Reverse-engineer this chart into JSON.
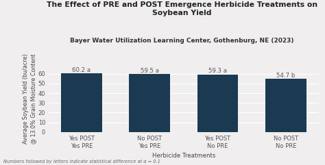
{
  "title_line1": "The Effect of PRE and POST Emergence Herbicide Treatments on",
  "title_line2": "Soybean Yield",
  "subtitle": "Bayer Water Utilization Learning Center, Gothenburg, NE (2023)",
  "categories": [
    "Yes POST\nYes PRE",
    "No POST\nYes PRE",
    "Yes POST\nNo PRE",
    "No POST\nNo PRE"
  ],
  "values": [
    60.2,
    59.5,
    59.3,
    54.7
  ],
  "labels": [
    "60.2 a",
    "59.5 a",
    "59.3 a",
    "54.7 b"
  ],
  "bar_color": "#1b3a52",
  "background_color": "#f0eeee",
  "ylabel": "Average Soybean Yield (bu/acre)\n@ 13.0% Grain Moisture Content",
  "xlabel": "Herbicide Treatments",
  "ylim": [
    0,
    68
  ],
  "yticks": [
    0,
    10,
    20,
    30,
    40,
    50,
    60
  ],
  "footnote": "Numbers followed by letters indicate statistical difference at α = 0.1",
  "title_fontsize": 7.8,
  "subtitle_fontsize": 6.5,
  "label_fontsize": 6.2,
  "axis_label_fontsize": 6.2,
  "tick_fontsize": 6.0,
  "footnote_fontsize": 4.8,
  "ylabel_fontsize": 5.8
}
